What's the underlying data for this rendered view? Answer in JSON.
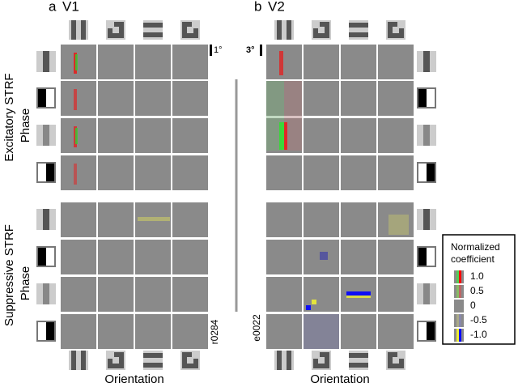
{
  "panels": [
    {
      "letter": "a",
      "area": "V1",
      "scale": "1°",
      "cell_id": "r0284"
    },
    {
      "letter": "b",
      "area": "V2",
      "scale": "3°",
      "cell_id": "e0022"
    }
  ],
  "row_groups": [
    {
      "label": "Excitatory STRF",
      "sublabel": "Phase"
    },
    {
      "label": "Suppressive STRF",
      "sublabel": "Phase"
    }
  ],
  "x_axis_label": "Orientation",
  "legend": {
    "title_lines": [
      "Normalized",
      "coefficient"
    ],
    "entries": [
      "1.0",
      "0.5",
      "0",
      "-0.5",
      "-1.0"
    ]
  }
}
